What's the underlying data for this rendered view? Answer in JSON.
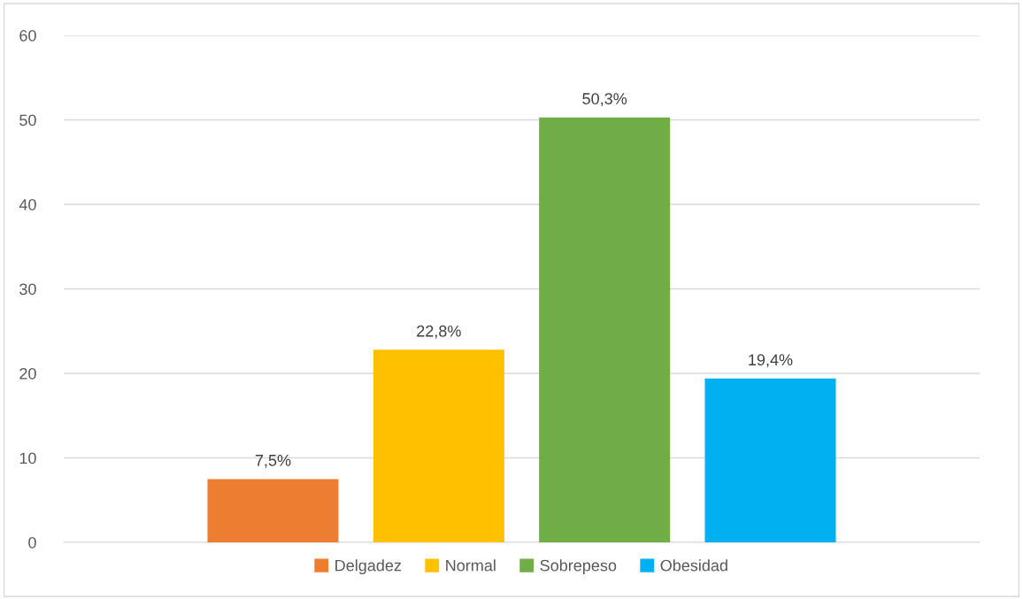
{
  "chart_data": {
    "type": "bar",
    "categories": [
      null
    ],
    "series": [
      {
        "name": "Delgadez",
        "color": "#ed7d31",
        "values": [
          7.5
        ],
        "value_labels": [
          "7,5%"
        ]
      },
      {
        "name": "Normal",
        "color": "#ffc000",
        "values": [
          22.8
        ],
        "value_labels": [
          "22,8%"
        ]
      },
      {
        "name": "Sobrepeso",
        "color": "#70ad47",
        "values": [
          50.3
        ],
        "value_labels": [
          "50,3%"
        ]
      },
      {
        "name": "Obesidad",
        "color": "#00b0f0",
        "values": [
          19.4
        ],
        "value_labels": [
          "19,4%"
        ]
      }
    ],
    "ylim": [
      0,
      60
    ],
    "yticks": [
      0,
      10,
      20,
      30,
      40,
      50,
      60
    ],
    "grid": "y",
    "legend": "bottom",
    "tick_labels": "y"
  }
}
